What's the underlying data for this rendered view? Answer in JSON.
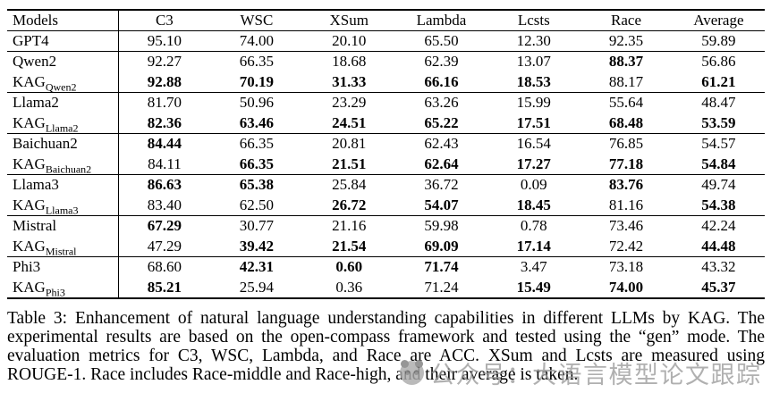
{
  "table": {
    "columns": [
      "Models",
      "C3",
      "WSC",
      "XSum",
      "Lambda",
      "Lcsts",
      "Race",
      "Average"
    ],
    "rows": [
      {
        "model": {
          "base": "GPT4",
          "sub": ""
        },
        "group_start": false,
        "values": [
          "95.10",
          "74.00",
          "20.10",
          "65.50",
          "12.30",
          "92.35",
          "59.89"
        ],
        "bold": [
          false,
          false,
          false,
          false,
          false,
          false,
          false
        ]
      },
      {
        "model": {
          "base": "Qwen2",
          "sub": ""
        },
        "group_start": true,
        "values": [
          "92.27",
          "66.35",
          "18.68",
          "62.39",
          "13.07",
          "88.37",
          "56.86"
        ],
        "bold": [
          false,
          false,
          false,
          false,
          false,
          true,
          false
        ]
      },
      {
        "model": {
          "base": "KAG",
          "sub": "Qwen2"
        },
        "group_start": false,
        "values": [
          "92.88",
          "70.19",
          "31.33",
          "66.16",
          "18.53",
          "88.17",
          "61.21"
        ],
        "bold": [
          true,
          true,
          true,
          true,
          true,
          false,
          true
        ]
      },
      {
        "model": {
          "base": "Llama2",
          "sub": ""
        },
        "group_start": true,
        "values": [
          "81.70",
          "50.96",
          "23.29",
          "63.26",
          "15.99",
          "55.64",
          "48.47"
        ],
        "bold": [
          false,
          false,
          false,
          false,
          false,
          false,
          false
        ]
      },
      {
        "model": {
          "base": "KAG",
          "sub": "Llama2"
        },
        "group_start": false,
        "values": [
          "82.36",
          "63.46",
          "24.51",
          "65.22",
          "17.51",
          "68.48",
          "53.59"
        ],
        "bold": [
          true,
          true,
          true,
          true,
          true,
          true,
          true
        ]
      },
      {
        "model": {
          "base": "Baichuan2",
          "sub": ""
        },
        "group_start": true,
        "values": [
          "84.44",
          "66.35",
          "20.81",
          "62.43",
          "16.54",
          "76.85",
          "54.57"
        ],
        "bold": [
          true,
          false,
          false,
          false,
          false,
          false,
          false
        ]
      },
      {
        "model": {
          "base": "KAG",
          "sub": "Baichuan2"
        },
        "group_start": false,
        "values": [
          "84.11",
          "66.35",
          "21.51",
          "62.64",
          "17.27",
          "77.18",
          "54.84"
        ],
        "bold": [
          false,
          true,
          true,
          true,
          true,
          true,
          true
        ]
      },
      {
        "model": {
          "base": "Llama3",
          "sub": ""
        },
        "group_start": true,
        "values": [
          "86.63",
          "65.38",
          "25.84",
          "36.72",
          "0.09",
          "83.76",
          "49.74"
        ],
        "bold": [
          true,
          true,
          false,
          false,
          false,
          true,
          false
        ]
      },
      {
        "model": {
          "base": "KAG",
          "sub": "Llama3"
        },
        "group_start": false,
        "values": [
          "83.40",
          "62.50",
          "26.72",
          "54.07",
          "18.45",
          "81.16",
          "54.38"
        ],
        "bold": [
          false,
          false,
          true,
          true,
          true,
          false,
          true
        ]
      },
      {
        "model": {
          "base": "Mistral",
          "sub": ""
        },
        "group_start": true,
        "values": [
          "67.29",
          "30.77",
          "21.16",
          "59.98",
          "0.78",
          "73.46",
          "42.24"
        ],
        "bold": [
          true,
          false,
          false,
          false,
          false,
          false,
          false
        ]
      },
      {
        "model": {
          "base": "KAG",
          "sub": "Mistral"
        },
        "group_start": false,
        "values": [
          "47.29",
          "39.42",
          "21.54",
          "69.09",
          "17.14",
          "72.42",
          "44.48"
        ],
        "bold": [
          false,
          true,
          true,
          true,
          true,
          false,
          true
        ]
      },
      {
        "model": {
          "base": "Phi3",
          "sub": ""
        },
        "group_start": true,
        "values": [
          "68.60",
          "42.31",
          "0.60",
          "71.74",
          "3.47",
          "73.18",
          "43.32"
        ],
        "bold": [
          false,
          true,
          true,
          true,
          false,
          false,
          false
        ]
      },
      {
        "model": {
          "base": "KAG",
          "sub": "Phi3"
        },
        "group_start": false,
        "values": [
          "85.21",
          "25.94",
          "0.36",
          "71.24",
          "15.49",
          "74.00",
          "45.37"
        ],
        "bold": [
          true,
          false,
          false,
          false,
          true,
          true,
          true
        ]
      }
    ]
  },
  "caption": {
    "text": "Table 3: Enhancement of natural language understanding capabilities in different LLMs by KAG. The experimental results are based on the open-compass framework and tested using the “gen” mode. The evaluation metrics for C3, WSC, Lambda, and Race are ACC. XSum and Lcsts are measured using ROUGE-1. Race includes Race-middle and Race-high, and their average is taken."
  },
  "watermark": {
    "icon": "panda-badge-icon",
    "text": "公众号：大语言模型论文跟踪",
    "color": "#9b9b9b"
  }
}
